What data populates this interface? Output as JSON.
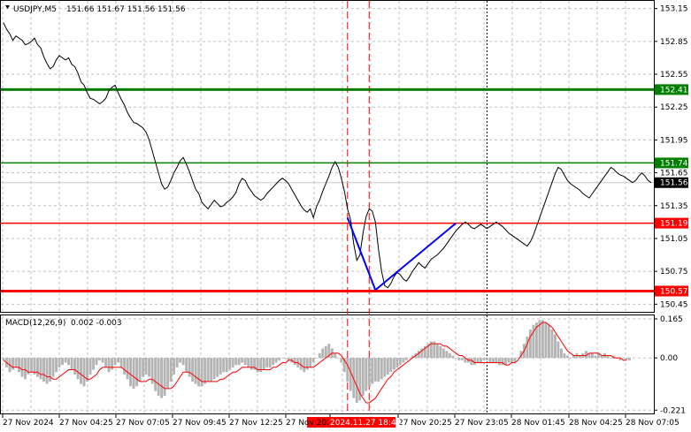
{
  "header": {
    "symbol_timeframe": "USDJPY,M5",
    "quote": "151.66 151.67 151.56 151.56"
  },
  "macd_header": {
    "label": "MACD(12,26,9)",
    "values": "0.002 -0.003"
  },
  "colors": {
    "support_red": "#ff0000",
    "resistance_green": "#008000",
    "price_line": "#000000",
    "macd_hist": "#b4b4b4",
    "macd_signal": "#ff0000",
    "trend_blue": "#0000ff",
    "current_price_tag": "#000000"
  },
  "chart_data": [
    {
      "type": "line",
      "title": "",
      "ylim": [
        150.38,
        153.22
      ],
      "y_ticks": [
        "153.15",
        "152.85",
        "152.55",
        "152.25",
        "151.95",
        "151.65",
        "151.35",
        "151.05",
        "150.75",
        "150.45"
      ],
      "x_ticks": [
        "27 Nov 2024",
        "27 Nov 04:25",
        "27 Nov 07:05",
        "27 Nov 09:45",
        "27 Nov 12:25",
        "27 Nov 2024",
        "2024.11.27 18:40",
        "27 Nov 20:25",
        "27 Nov 23:05",
        "28 Nov 01:45",
        "28 Nov 04:25",
        "28 Nov 07:05"
      ],
      "series": [
        {
          "price": [
            153.02,
            152.96,
            152.92,
            152.86,
            152.9,
            152.88,
            152.86,
            152.82,
            152.83,
            152.85,
            152.88,
            152.82,
            152.79,
            152.71,
            152.65,
            152.6,
            152.62,
            152.68,
            152.72,
            152.7,
            152.68,
            152.7,
            152.64,
            152.62,
            152.56,
            152.48,
            152.45,
            152.38,
            152.33,
            152.32,
            152.3,
            152.28,
            152.3,
            152.33,
            152.4,
            152.43,
            152.45,
            152.38,
            152.32,
            152.27,
            152.2,
            152.15,
            152.11,
            152.1,
            152.08,
            152.06,
            152.02,
            151.95,
            151.85,
            151.75,
            151.65,
            151.55,
            151.5,
            151.52,
            151.58,
            151.65,
            151.7,
            151.76,
            151.79,
            151.73,
            151.66,
            151.58,
            151.5,
            151.46,
            151.38,
            151.35,
            151.32,
            151.36,
            151.4,
            151.37,
            151.34,
            151.35,
            151.38,
            151.4,
            151.43,
            151.47,
            151.55,
            151.6,
            151.58,
            151.52,
            151.48,
            151.44,
            151.42,
            151.4,
            151.42,
            151.46,
            151.49,
            151.52,
            151.55,
            151.58,
            151.6,
            151.58,
            151.55,
            151.5,
            151.45,
            151.4,
            151.35,
            151.31,
            151.29,
            151.32,
            151.24,
            151.34,
            151.4,
            151.48,
            151.55,
            151.62,
            151.7,
            151.75,
            151.7,
            151.6,
            151.48,
            151.32,
            151.22,
            151.0,
            150.85,
            150.9,
            151.1,
            151.25,
            151.32,
            151.3,
            151.2,
            150.95,
            150.75,
            150.62,
            150.6,
            150.64,
            150.7,
            150.74,
            150.72,
            150.68,
            150.66,
            150.7,
            150.75,
            150.79,
            150.83,
            150.8,
            150.78,
            150.82,
            150.86,
            150.88,
            150.9,
            150.93,
            150.96,
            151.0,
            151.04,
            151.08,
            151.12,
            151.15,
            151.18,
            151.2,
            151.18,
            151.15,
            151.14,
            151.16,
            151.18,
            151.16,
            151.14,
            151.16,
            151.18,
            151.2,
            151.18,
            151.16,
            151.13,
            151.1,
            151.08,
            151.06,
            151.04,
            151.02,
            151.0,
            150.98,
            151.02,
            151.08,
            151.16,
            151.24,
            151.32,
            151.4,
            151.48,
            151.56,
            151.64,
            151.7,
            151.68,
            151.63,
            151.58,
            151.55,
            151.53,
            151.51,
            151.49,
            151.46,
            151.44,
            151.42,
            151.46,
            151.5,
            151.54,
            151.58,
            151.62,
            151.66,
            151.7,
            151.68,
            151.65,
            151.63,
            151.62,
            151.6,
            151.58,
            151.56,
            151.58,
            151.62,
            151.65,
            151.62,
            151.58,
            151.56
          ]
        }
      ],
      "levels": [
        {
          "label": "152.41",
          "value": 152.41,
          "color": "green",
          "weight": "thick"
        },
        {
          "label": "151.74",
          "value": 151.74,
          "color": "green",
          "weight": "thin"
        },
        {
          "label": "151.19",
          "value": 151.19,
          "color": "red",
          "weight": "thin"
        },
        {
          "label": "150.57",
          "value": 150.57,
          "color": "red",
          "weight": "thick"
        }
      ],
      "current_price": {
        "label": "151.56",
        "value": 151.56
      },
      "trend_lines": [
        {
          "from": [
            111,
            151.24
          ],
          "to": [
            120,
            150.58
          ]
        },
        {
          "from": [
            120,
            150.58
          ],
          "to": [
            146,
            151.19
          ]
        }
      ],
      "vertical_markers": [
        {
          "index": 111,
          "style": "dashed-red"
        },
        {
          "index": 118,
          "style": "dashed-red"
        },
        {
          "index": 156,
          "style": "dotted-black"
        }
      ]
    },
    {
      "type": "bar",
      "title": "",
      "ylim": [
        -0.235,
        0.18
      ],
      "y_ticks": [
        "0.165",
        "0.00",
        "-0.221"
      ],
      "series": [
        {
          "histogram": [
            -0.01,
            -0.04,
            -0.06,
            -0.05,
            -0.04,
            -0.06,
            -0.08,
            -0.09,
            -0.07,
            -0.06,
            -0.07,
            -0.08,
            -0.09,
            -0.1,
            -0.11,
            -0.1,
            -0.08,
            -0.06,
            -0.04,
            -0.03,
            -0.02,
            -0.03,
            -0.05,
            -0.07,
            -0.09,
            -0.11,
            -0.12,
            -0.1,
            -0.07,
            -0.05,
            -0.03,
            -0.01,
            -0.02,
            -0.04,
            -0.06,
            -0.05,
            -0.03,
            -0.02,
            -0.04,
            -0.07,
            -0.09,
            -0.12,
            -0.13,
            -0.12,
            -0.1,
            -0.08,
            -0.07,
            -0.08,
            -0.11,
            -0.14,
            -0.16,
            -0.17,
            -0.16,
            -0.13,
            -0.1,
            -0.07,
            -0.04,
            -0.02,
            -0.03,
            -0.06,
            -0.08,
            -0.1,
            -0.11,
            -0.12,
            -0.12,
            -0.11,
            -0.1,
            -0.1,
            -0.09,
            -0.08,
            -0.07,
            -0.06,
            -0.06,
            -0.05,
            -0.04,
            -0.03,
            -0.03,
            -0.02,
            -0.03,
            -0.04,
            -0.05,
            -0.05,
            -0.06,
            -0.06,
            -0.05,
            -0.04,
            -0.04,
            -0.03,
            -0.02,
            -0.01,
            0.0,
            0.0,
            -0.01,
            -0.02,
            -0.03,
            -0.04,
            -0.05,
            -0.06,
            -0.05,
            -0.04,
            -0.02,
            0.0,
            0.02,
            0.04,
            0.05,
            0.06,
            0.04,
            0.02,
            0.0,
            -0.02,
            -0.06,
            -0.1,
            -0.14,
            -0.17,
            -0.19,
            -0.18,
            -0.16,
            -0.14,
            -0.12,
            -0.11,
            -0.1,
            -0.1,
            -0.09,
            -0.08,
            -0.07,
            -0.06,
            -0.05,
            -0.04,
            -0.03,
            -0.02,
            -0.01,
            0.0,
            0.01,
            0.02,
            0.03,
            0.04,
            0.05,
            0.06,
            0.07,
            0.07,
            0.06,
            0.05,
            0.04,
            0.03,
            0.02,
            0.01,
            0.0,
            -0.01,
            -0.01,
            -0.02,
            -0.02,
            -0.03,
            -0.03,
            -0.02,
            -0.02,
            -0.01,
            -0.01,
            -0.02,
            -0.02,
            -0.02,
            -0.03,
            -0.03,
            -0.03,
            -0.02,
            -0.02,
            -0.02,
            0.0,
            0.03,
            0.06,
            0.09,
            0.12,
            0.14,
            0.15,
            0.16,
            0.16,
            0.15,
            0.14,
            0.12,
            0.1,
            0.07,
            0.04,
            0.02,
            0.01,
            0.0,
            0.01,
            0.02,
            0.01,
            0.02,
            0.03,
            0.02,
            0.02,
            0.01,
            0.02,
            0.01,
            0.02,
            0.01,
            0.0,
            0.01,
            0.0,
            -0.01,
            0.0,
            -0.01,
            -0.01
          ]
        },
        {
          "signal": [
            -0.01,
            -0.02,
            -0.03,
            -0.04,
            -0.04,
            -0.04,
            -0.05,
            -0.05,
            -0.06,
            -0.06,
            -0.06,
            -0.06,
            -0.07,
            -0.07,
            -0.08,
            -0.08,
            -0.09,
            -0.09,
            -0.08,
            -0.07,
            -0.06,
            -0.05,
            -0.05,
            -0.05,
            -0.06,
            -0.07,
            -0.08,
            -0.09,
            -0.09,
            -0.08,
            -0.07,
            -0.05,
            -0.04,
            -0.04,
            -0.04,
            -0.04,
            -0.04,
            -0.04,
            -0.04,
            -0.05,
            -0.06,
            -0.07,
            -0.08,
            -0.09,
            -0.1,
            -0.1,
            -0.1,
            -0.09,
            -0.09,
            -0.1,
            -0.11,
            -0.12,
            -0.13,
            -0.13,
            -0.13,
            -0.12,
            -0.1,
            -0.08,
            -0.06,
            -0.06,
            -0.06,
            -0.07,
            -0.08,
            -0.09,
            -0.1,
            -0.1,
            -0.1,
            -0.1,
            -0.1,
            -0.1,
            -0.09,
            -0.09,
            -0.08,
            -0.07,
            -0.06,
            -0.06,
            -0.05,
            -0.04,
            -0.04,
            -0.04,
            -0.04,
            -0.04,
            -0.05,
            -0.05,
            -0.05,
            -0.05,
            -0.05,
            -0.04,
            -0.04,
            -0.03,
            -0.02,
            -0.02,
            -0.01,
            -0.01,
            -0.02,
            -0.02,
            -0.03,
            -0.04,
            -0.04,
            -0.04,
            -0.04,
            -0.03,
            -0.02,
            -0.01,
            0.0,
            0.01,
            0.02,
            0.02,
            0.02,
            0.01,
            -0.01,
            -0.03,
            -0.06,
            -0.09,
            -0.12,
            -0.15,
            -0.17,
            -0.19,
            -0.19,
            -0.18,
            -0.17,
            -0.15,
            -0.13,
            -0.11,
            -0.09,
            -0.08,
            -0.06,
            -0.05,
            -0.04,
            -0.03,
            -0.02,
            -0.01,
            0.0,
            0.01,
            0.02,
            0.03,
            0.04,
            0.05,
            0.06,
            0.06,
            0.06,
            0.06,
            0.05,
            0.05,
            0.04,
            0.03,
            0.02,
            0.01,
            0.01,
            0.0,
            -0.01,
            -0.01,
            -0.02,
            -0.02,
            -0.02,
            -0.02,
            -0.02,
            -0.02,
            -0.02,
            -0.02,
            -0.02,
            -0.02,
            -0.03,
            -0.03,
            -0.02,
            -0.02,
            -0.01,
            0.01,
            0.03,
            0.06,
            0.09,
            0.11,
            0.13,
            0.14,
            0.15,
            0.15,
            0.14,
            0.13,
            0.11,
            0.09,
            0.07,
            0.05,
            0.03,
            0.02,
            0.01,
            0.01,
            0.01,
            0.01,
            0.01,
            0.02,
            0.02,
            0.02,
            0.02,
            0.01,
            0.01,
            0.01,
            0.01,
            0.0,
            0.0,
            0.0,
            -0.01,
            -0.01
          ]
        }
      ]
    }
  ]
}
